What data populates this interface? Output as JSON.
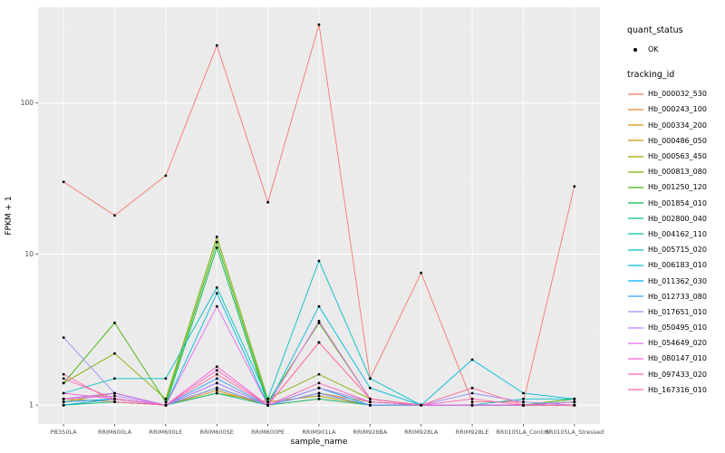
{
  "chart_data": {
    "type": "line",
    "title": "",
    "xlabel": "sample_name",
    "ylabel": "FPKM + 1",
    "y_scale": "log10",
    "y_ticks": [
      "1",
      "10",
      "100"
    ],
    "y_minor_ticks": [
      3.1623,
      31.623,
      316.23
    ],
    "ylim": [
      0.75,
      430
    ],
    "grid": "on",
    "legend_position": "right",
    "point_color": "#000000",
    "panel_color": "#EBEBEB",
    "categories": [
      "PB350LA",
      "RRIM600LA",
      "RRIM600LE",
      "RRIM600SE",
      "RRIM600PE",
      "RRIM901LA",
      "RRIM928BA",
      "RRIM928LA",
      "RRIM928LE",
      "RRII105LA_Control",
      "RRII105LA_Stressed"
    ],
    "series": [
      {
        "name": "Hb_000032_530",
        "color": "#F8766D",
        "values": [
          30,
          18,
          33,
          240,
          22,
          330,
          1.5,
          7.5,
          1.05,
          1.05,
          28
        ]
      },
      {
        "name": "Hb_000243_100",
        "color": "#EA8331",
        "values": [
          1.1,
          1.05,
          1.0,
          1.3,
          1.0,
          1.2,
          1.05,
          1.0,
          1.0,
          1.0,
          1.05
        ]
      },
      {
        "name": "Hb_000334_200",
        "color": "#D89000",
        "values": [
          1.0,
          1.1,
          1.0,
          1.25,
          1.0,
          1.1,
          1.0,
          1.0,
          1.0,
          1.0,
          1.0
        ]
      },
      {
        "name": "Hb_000486_050",
        "color": "#C09B00",
        "values": [
          1.05,
          1.2,
          1.0,
          1.2,
          1.05,
          1.15,
          1.0,
          1.0,
          1.0,
          1.0,
          1.05
        ]
      },
      {
        "name": "Hb_000563_450",
        "color": "#A3A500",
        "values": [
          1.0,
          1.1,
          1.0,
          1.3,
          1.0,
          1.2,
          1.0,
          1.0,
          1.0,
          1.0,
          1.0
        ]
      },
      {
        "name": "Hb_000813_080",
        "color": "#7CAE00",
        "values": [
          1.4,
          2.2,
          1.1,
          13,
          1.1,
          1.6,
          1.1,
          1.0,
          1.0,
          1.0,
          1.1
        ]
      },
      {
        "name": "Hb_001250_120",
        "color": "#39B600",
        "values": [
          1.4,
          3.5,
          1.05,
          12,
          1.05,
          3.5,
          1.1,
          1.0,
          1.0,
          1.0,
          1.1
        ]
      },
      {
        "name": "Hb_001854_010",
        "color": "#00BB4E",
        "values": [
          1.1,
          1.2,
          1.0,
          11,
          1.0,
          1.3,
          1.05,
          1.0,
          1.0,
          1.0,
          1.05
        ]
      },
      {
        "name": "Hb_002800_040",
        "color": "#00BF7D",
        "values": [
          1.0,
          1.05,
          1.0,
          1.2,
          1.0,
          1.1,
          1.0,
          1.0,
          1.0,
          1.0,
          1.0
        ]
      },
      {
        "name": "Hb_004162_110",
        "color": "#00C1A3",
        "values": [
          1.05,
          1.1,
          1.0,
          1.3,
          1.0,
          1.2,
          1.0,
          1.0,
          1.0,
          1.0,
          1.05
        ]
      },
      {
        "name": "Hb_005715_020",
        "color": "#00BFC4",
        "values": [
          1.2,
          1.5,
          1.5,
          6,
          1.1,
          9,
          1.5,
          1.0,
          1.0,
          1.1,
          1.1
        ]
      },
      {
        "name": "Hb_006183_010",
        "color": "#00BAE0",
        "values": [
          1.1,
          1.2,
          1.0,
          5.5,
          1.0,
          4.5,
          1.3,
          1.0,
          2.0,
          1.2,
          1.1
        ]
      },
      {
        "name": "Hb_011362_030",
        "color": "#00B0F6",
        "values": [
          1.0,
          1.1,
          1.0,
          1.4,
          1.0,
          1.3,
          1.0,
          1.0,
          1.0,
          1.0,
          1.0
        ]
      },
      {
        "name": "Hb_012733_080",
        "color": "#35A2FF",
        "values": [
          1.05,
          1.1,
          1.0,
          1.5,
          1.0,
          1.2,
          1.0,
          1.0,
          1.0,
          1.0,
          1.05
        ]
      },
      {
        "name": "Hb_017651_010",
        "color": "#9590FF",
        "values": [
          2.8,
          1.2,
          1.0,
          1.3,
          1.0,
          1.2,
          1.0,
          1.0,
          1.2,
          1.05,
          1.0
        ]
      },
      {
        "name": "Hb_050495_010",
        "color": "#C77CFF",
        "values": [
          1.1,
          1.15,
          1.0,
          1.4,
          1.0,
          1.3,
          1.05,
          1.0,
          1.0,
          1.0,
          1.0
        ]
      },
      {
        "name": "Hb_054649_020",
        "color": "#E76BF3",
        "values": [
          1.1,
          1.2,
          1.0,
          4.5,
          1.0,
          3.6,
          1.1,
          1.0,
          1.0,
          1.0,
          1.05
        ]
      },
      {
        "name": "Hb_080147_010",
        "color": "#FA62DB",
        "values": [
          1.2,
          1.1,
          1.0,
          1.8,
          1.0,
          2.6,
          1.1,
          1.0,
          1.0,
          1.0,
          1.0
        ]
      },
      {
        "name": "Hb_097433_020",
        "color": "#FF62BC",
        "values": [
          1.5,
          1.1,
          1.0,
          1.7,
          1.0,
          1.4,
          1.05,
          1.0,
          1.1,
          1.0,
          1.0
        ]
      },
      {
        "name": "Hb_167316_010",
        "color": "#FF6A98",
        "values": [
          1.6,
          1.05,
          1.0,
          1.6,
          1.0,
          2.6,
          1.1,
          1.0,
          1.3,
          1.0,
          1.0
        ]
      }
    ]
  },
  "legend": {
    "quant_status_title": "quant_status",
    "quant_status_items": [
      {
        "label": "OK"
      }
    ],
    "tracking_id_title": "tracking_id"
  }
}
